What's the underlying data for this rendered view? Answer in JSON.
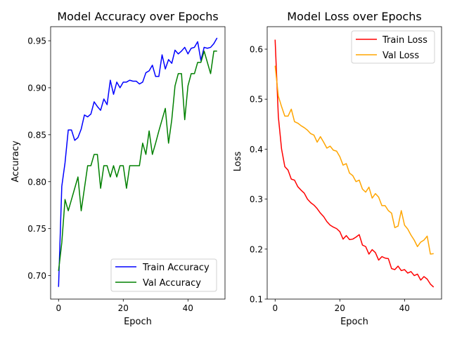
{
  "chart_data": [
    {
      "type": "line",
      "title": "Model Accuracy over Epochs",
      "xlabel": "Epoch",
      "ylabel": "Accuracy",
      "xlim": [
        -2.45,
        51.45
      ],
      "ylim": [
        0.675,
        0.965
      ],
      "xticks": [
        0,
        20,
        40
      ],
      "yticks": [
        0.7,
        0.75,
        0.8,
        0.85,
        0.9,
        0.95
      ],
      "ytick_labels": [
        "0.70",
        "0.75",
        "0.80",
        "0.85",
        "0.90",
        "0.95"
      ],
      "legend_position": "lower-right",
      "x": [
        0,
        1,
        2,
        3,
        4,
        5,
        6,
        7,
        8,
        9,
        10,
        11,
        12,
        13,
        14,
        15,
        16,
        17,
        18,
        19,
        20,
        21,
        22,
        23,
        24,
        25,
        26,
        27,
        28,
        29,
        30,
        31,
        32,
        33,
        34,
        35,
        36,
        37,
        38,
        39,
        40,
        41,
        42,
        43,
        44,
        45,
        46,
        47,
        48,
        49
      ],
      "series": [
        {
          "name": "Train Accuracy",
          "color": "#0000ff",
          "values": [
            0.688,
            0.795,
            0.82,
            0.855,
            0.855,
            0.844,
            0.847,
            0.856,
            0.871,
            0.869,
            0.872,
            0.885,
            0.88,
            0.876,
            0.888,
            0.882,
            0.908,
            0.893,
            0.906,
            0.9,
            0.906,
            0.906,
            0.908,
            0.907,
            0.907,
            0.904,
            0.906,
            0.916,
            0.918,
            0.924,
            0.912,
            0.912,
            0.935,
            0.92,
            0.93,
            0.926,
            0.94,
            0.936,
            0.939,
            0.943,
            0.936,
            0.942,
            0.943,
            0.949,
            0.929,
            0.943,
            0.942,
            0.943,
            0.947,
            0.953
          ]
        },
        {
          "name": "Val Accuracy",
          "color": "#008000",
          "values": [
            0.705,
            0.735,
            0.781,
            0.769,
            0.781,
            0.793,
            0.805,
            0.769,
            0.793,
            0.817,
            0.817,
            0.829,
            0.829,
            0.793,
            0.817,
            0.817,
            0.805,
            0.817,
            0.805,
            0.817,
            0.817,
            0.793,
            0.817,
            0.817,
            0.817,
            0.817,
            0.841,
            0.829,
            0.854,
            0.829,
            0.841,
            0.854,
            0.866,
            0.878,
            0.841,
            0.866,
            0.902,
            0.915,
            0.915,
            0.866,
            0.902,
            0.915,
            0.915,
            0.927,
            0.927,
            0.939,
            0.927,
            0.915,
            0.939,
            0.939
          ]
        }
      ]
    },
    {
      "type": "line",
      "title": "Model Loss over Epochs",
      "xlabel": "Epoch",
      "ylabel": "Loss",
      "xlim": [
        -2.45,
        51.45
      ],
      "ylim": [
        0.1,
        0.645
      ],
      "xticks": [
        0,
        20,
        40
      ],
      "yticks": [
        0.1,
        0.2,
        0.3,
        0.4,
        0.5,
        0.6
      ],
      "ytick_labels": [
        "0.1",
        "0.2",
        "0.3",
        "0.4",
        "0.5",
        "0.6"
      ],
      "legend_position": "top-right",
      "x": [
        0,
        1,
        2,
        3,
        4,
        5,
        6,
        7,
        8,
        9,
        10,
        11,
        12,
        13,
        14,
        15,
        16,
        17,
        18,
        19,
        20,
        21,
        22,
        23,
        24,
        25,
        26,
        27,
        28,
        29,
        30,
        31,
        32,
        33,
        34,
        35,
        36,
        37,
        38,
        39,
        40,
        41,
        42,
        43,
        44,
        45,
        46,
        47,
        48,
        49
      ],
      "series": [
        {
          "name": "Train Loss",
          "color": "#ff0000",
          "values": [
            0.619,
            0.465,
            0.4,
            0.365,
            0.358,
            0.34,
            0.338,
            0.325,
            0.318,
            0.312,
            0.3,
            0.293,
            0.288,
            0.281,
            0.272,
            0.265,
            0.255,
            0.248,
            0.244,
            0.241,
            0.235,
            0.22,
            0.227,
            0.219,
            0.22,
            0.224,
            0.229,
            0.208,
            0.205,
            0.19,
            0.199,
            0.193,
            0.178,
            0.185,
            0.182,
            0.181,
            0.161,
            0.159,
            0.166,
            0.157,
            0.159,
            0.152,
            0.155,
            0.147,
            0.15,
            0.138,
            0.145,
            0.14,
            0.13,
            0.124
          ]
        },
        {
          "name": "Val Loss",
          "color": "#ffa500",
          "values": [
            0.567,
            0.506,
            0.485,
            0.466,
            0.466,
            0.48,
            0.455,
            0.452,
            0.447,
            0.443,
            0.438,
            0.431,
            0.428,
            0.414,
            0.425,
            0.414,
            0.402,
            0.406,
            0.398,
            0.396,
            0.385,
            0.368,
            0.371,
            0.352,
            0.347,
            0.335,
            0.338,
            0.32,
            0.314,
            0.324,
            0.302,
            0.311,
            0.304,
            0.287,
            0.287,
            0.277,
            0.272,
            0.243,
            0.246,
            0.277,
            0.248,
            0.24,
            0.228,
            0.218,
            0.205,
            0.214,
            0.218,
            0.226,
            0.19,
            0.191
          ]
        }
      ]
    }
  ]
}
